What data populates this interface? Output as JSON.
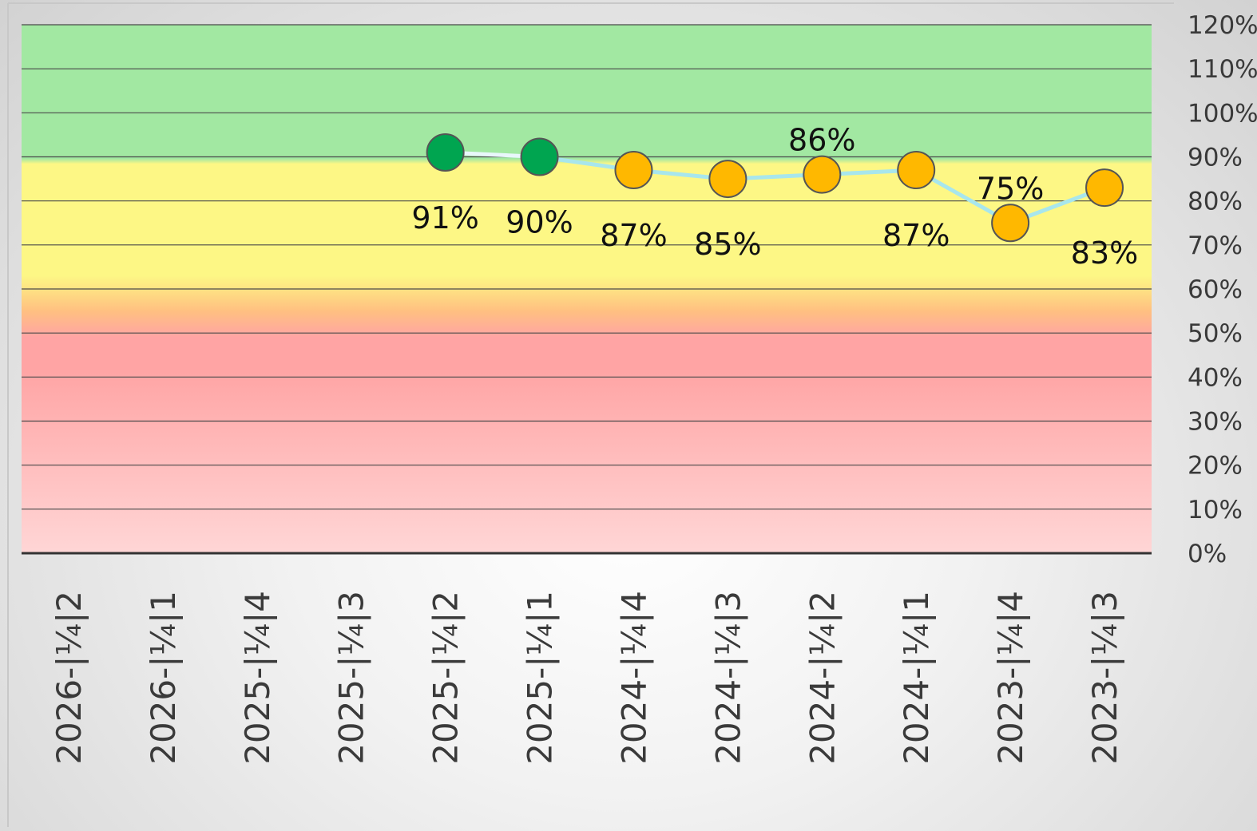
{
  "chart_data": {
    "type": "line",
    "categories": [
      "2026-¼2",
      "2026-¼1",
      "2025-¼4",
      "2025-¼3",
      "2025-¼2",
      "2025-¼1",
      "2024-¼4",
      "2024-¼3",
      "2024-¼2",
      "2024-¼1",
      "2023-¼4",
      "2023-¼3"
    ],
    "category_labels": [
      "2026-|¼|2",
      "2026-|¼|1",
      "2025-|¼|4",
      "2025-|¼|3",
      "2025-|¼|2",
      "2025-|¼|1",
      "2024-|¼|4",
      "2024-|¼|3",
      "2024-|¼|2",
      "2024-|¼|1",
      "2023-|¼|4",
      "2023-|¼|3"
    ],
    "series": [
      {
        "values": [
          null,
          null,
          null,
          null,
          91,
          90,
          87,
          85,
          86,
          87,
          75,
          83
        ],
        "data_labels": [
          "",
          "",
          "",
          "",
          "91%",
          "90%",
          "87%",
          "85%",
          "86%",
          "87%",
          "75%",
          "83%"
        ],
        "label_positions": [
          "",
          "",
          "",
          "",
          "below",
          "below",
          "below",
          "below",
          "above",
          "below",
          "above",
          "below"
        ]
      }
    ],
    "point_colors": {
      "at_or_above_target": "#00a550",
      "below_target": "#ffb800"
    },
    "line_colors": [
      "#e8f7fb",
      "#a8e6ec"
    ],
    "target": 89,
    "bands": [
      {
        "from": 89,
        "to": 120,
        "color": "#a2e8a2"
      },
      {
        "from": 60,
        "to": 89,
        "color": "#fdf785"
      },
      {
        "from": 50,
        "to": 60,
        "color": "#ffc081"
      },
      {
        "from": 0,
        "to": 50,
        "color": "#ffa4a4"
      }
    ],
    "y_ticks": [
      "0%",
      "10%",
      "20%",
      "30%",
      "40%",
      "50%",
      "60%",
      "70%",
      "80%",
      "90%",
      "100%",
      "110%",
      "120%"
    ],
    "ylim": [
      0,
      120
    ],
    "ytick_step": 10,
    "y_axis_position": "right",
    "grid": true,
    "legend": "none"
  }
}
